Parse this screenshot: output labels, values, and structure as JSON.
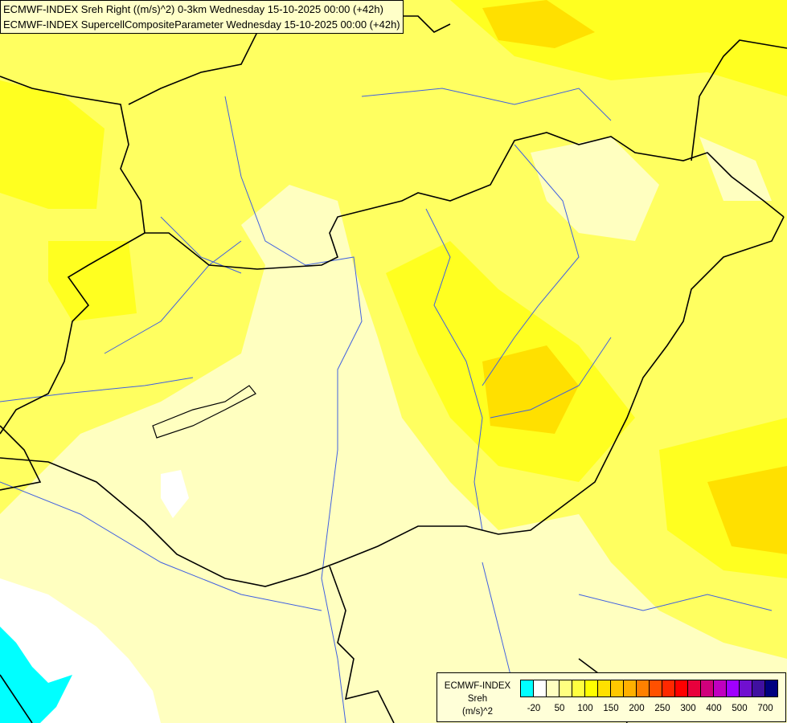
{
  "title": {
    "line1": "ECMWF-INDEX Sreh Right ((m/s)^2) 0-3km Wednesday 15-10-2025 00:00 (+42h)",
    "line2": "ECMWF-INDEX SupercellCompositeParameter Wednesday 15-10-2025 00:00 (+42h)"
  },
  "legend": {
    "model": "ECMWF-INDEX",
    "parameter": "Sreh",
    "unit": "(m/s)^2",
    "colors": [
      "#00ffff",
      "#ffffff",
      "#ffffc0",
      "#ffff80",
      "#ffff40",
      "#ffff00",
      "#ffe000",
      "#ffc800",
      "#ffb000",
      "#ff8000",
      "#ff5000",
      "#ff2800",
      "#ff0000",
      "#e8003c",
      "#d0007c",
      "#c000c0",
      "#a000ff",
      "#7010d0",
      "#4010a0",
      "#000080"
    ],
    "labels": [
      "-20",
      "50",
      "100",
      "150",
      "200",
      "250",
      "300",
      "400",
      "500",
      "700"
    ]
  },
  "map_colors": {
    "border": "#000000",
    "river": "#4060e0"
  }
}
